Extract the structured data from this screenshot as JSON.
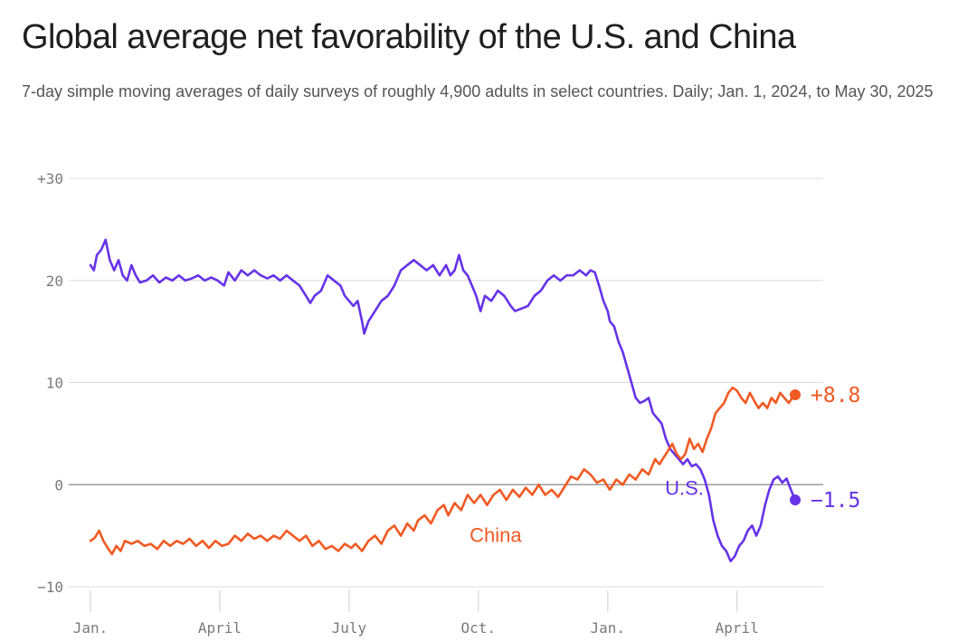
{
  "header": {
    "title": "Global average net favorability of the U.S. and China",
    "subtitle": "7-day simple moving averages of daily surveys of roughly 4,900 adults in select countries. Daily; Jan. 1, 2024, to May 30, 2025"
  },
  "colors": {
    "us": "#6733e8",
    "china": "#f05a23",
    "grid": "#dcdcdc",
    "zero": "#9a9a9a",
    "tick": "#7a7a7a"
  },
  "chart_data": {
    "type": "line",
    "title": "Global average net favorability of the U.S. and China",
    "xlabel": "",
    "ylabel": "",
    "ylim": [
      -10,
      30
    ],
    "grid": true,
    "x_unit": "months since Jan. 1, 2024",
    "xlim": [
      0,
      17
    ],
    "y_ticks": [
      {
        "value": 30,
        "label": "+30"
      },
      {
        "value": 20,
        "label": "20"
      },
      {
        "value": 10,
        "label": "10"
      },
      {
        "value": 0,
        "label": "0"
      },
      {
        "value": -10,
        "label": "−10"
      }
    ],
    "x_ticks": [
      {
        "value": 0,
        "label": "Jan."
      },
      {
        "value": 3,
        "label": "April"
      },
      {
        "value": 6,
        "label": "July"
      },
      {
        "value": 9,
        "label": "Oct."
      },
      {
        "value": 12,
        "label": "Jan."
      },
      {
        "value": 15,
        "label": "April"
      }
    ],
    "series": [
      {
        "name": "U.S.",
        "label": "U.S.",
        "end_label": "−1.5",
        "end_value": -1.5,
        "points": [
          [
            0.0,
            21.5
          ],
          [
            0.08,
            21.0
          ],
          [
            0.15,
            22.5
          ],
          [
            0.25,
            23.0
          ],
          [
            0.35,
            24.0
          ],
          [
            0.45,
            22.0
          ],
          [
            0.55,
            21.0
          ],
          [
            0.65,
            22.0
          ],
          [
            0.75,
            20.5
          ],
          [
            0.85,
            20.0
          ],
          [
            0.95,
            21.5
          ],
          [
            1.05,
            20.5
          ],
          [
            1.15,
            19.8
          ],
          [
            1.3,
            20.0
          ],
          [
            1.45,
            20.5
          ],
          [
            1.6,
            19.8
          ],
          [
            1.75,
            20.3
          ],
          [
            1.9,
            20.0
          ],
          [
            2.05,
            20.5
          ],
          [
            2.2,
            20.0
          ],
          [
            2.35,
            20.2
          ],
          [
            2.5,
            20.5
          ],
          [
            2.65,
            20.0
          ],
          [
            2.8,
            20.3
          ],
          [
            2.95,
            20.0
          ],
          [
            3.1,
            19.5
          ],
          [
            3.2,
            20.8
          ],
          [
            3.35,
            20.0
          ],
          [
            3.5,
            21.0
          ],
          [
            3.65,
            20.5
          ],
          [
            3.8,
            21.0
          ],
          [
            3.95,
            20.5
          ],
          [
            4.1,
            20.2
          ],
          [
            4.25,
            20.5
          ],
          [
            4.4,
            20.0
          ],
          [
            4.55,
            20.5
          ],
          [
            4.7,
            20.0
          ],
          [
            4.85,
            19.5
          ],
          [
            5.0,
            18.5
          ],
          [
            5.1,
            17.8
          ],
          [
            5.2,
            18.5
          ],
          [
            5.35,
            19.0
          ],
          [
            5.5,
            20.5
          ],
          [
            5.65,
            20.0
          ],
          [
            5.8,
            19.5
          ],
          [
            5.9,
            18.5
          ],
          [
            6.0,
            18.0
          ],
          [
            6.1,
            17.5
          ],
          [
            6.2,
            18.0
          ],
          [
            6.3,
            16.0
          ],
          [
            6.35,
            14.8
          ],
          [
            6.45,
            16.0
          ],
          [
            6.6,
            17.0
          ],
          [
            6.75,
            18.0
          ],
          [
            6.9,
            18.5
          ],
          [
            7.05,
            19.5
          ],
          [
            7.2,
            21.0
          ],
          [
            7.35,
            21.5
          ],
          [
            7.5,
            22.0
          ],
          [
            7.65,
            21.5
          ],
          [
            7.8,
            21.0
          ],
          [
            7.95,
            21.5
          ],
          [
            8.1,
            20.5
          ],
          [
            8.25,
            21.5
          ],
          [
            8.35,
            20.5
          ],
          [
            8.45,
            21.0
          ],
          [
            8.55,
            22.5
          ],
          [
            8.65,
            21.0
          ],
          [
            8.75,
            20.5
          ],
          [
            8.85,
            19.5
          ],
          [
            8.95,
            18.5
          ],
          [
            9.05,
            17.0
          ],
          [
            9.15,
            18.5
          ],
          [
            9.3,
            18.0
          ],
          [
            9.45,
            19.0
          ],
          [
            9.6,
            18.5
          ],
          [
            9.75,
            17.5
          ],
          [
            9.85,
            17.0
          ],
          [
            10.15,
            17.5
          ],
          [
            10.3,
            18.5
          ],
          [
            10.45,
            19.0
          ],
          [
            10.6,
            20.0
          ],
          [
            10.75,
            20.5
          ],
          [
            10.9,
            20.0
          ],
          [
            11.05,
            20.5
          ],
          [
            11.2,
            20.5
          ],
          [
            11.35,
            21.0
          ],
          [
            11.5,
            20.5
          ],
          [
            11.6,
            21.0
          ],
          [
            11.7,
            20.8
          ],
          [
            11.8,
            19.5
          ],
          [
            11.9,
            18.0
          ],
          [
            12.0,
            17.0
          ],
          [
            12.05,
            16.0
          ],
          [
            12.15,
            15.5
          ],
          [
            12.25,
            14.0
          ],
          [
            12.35,
            13.0
          ],
          [
            12.45,
            11.5
          ],
          [
            12.55,
            10.0
          ],
          [
            12.65,
            8.5
          ],
          [
            12.75,
            8.0
          ],
          [
            12.85,
            8.2
          ],
          [
            12.95,
            8.5
          ],
          [
            13.05,
            7.0
          ],
          [
            13.15,
            6.5
          ],
          [
            13.25,
            6.0
          ],
          [
            13.35,
            4.5
          ],
          [
            13.45,
            3.5
          ],
          [
            13.55,
            3.0
          ],
          [
            13.65,
            2.5
          ],
          [
            13.75,
            2.0
          ],
          [
            13.85,
            2.5
          ],
          [
            13.95,
            1.8
          ],
          [
            14.05,
            2.0
          ],
          [
            14.15,
            1.5
          ],
          [
            14.25,
            0.5
          ],
          [
            14.35,
            -1.0
          ],
          [
            14.45,
            -3.5
          ],
          [
            14.55,
            -5.0
          ],
          [
            14.65,
            -6.0
          ],
          [
            14.75,
            -6.5
          ],
          [
            14.85,
            -7.5
          ],
          [
            14.95,
            -7.0
          ],
          [
            15.05,
            -6.0
          ],
          [
            15.15,
            -5.5
          ],
          [
            15.25,
            -4.5
          ],
          [
            15.35,
            -4.0
          ],
          [
            15.45,
            -5.0
          ],
          [
            15.55,
            -4.0
          ],
          [
            15.65,
            -2.0
          ],
          [
            15.75,
            -0.5
          ],
          [
            15.85,
            0.5
          ],
          [
            15.95,
            0.8
          ],
          [
            16.05,
            0.2
          ],
          [
            16.15,
            0.6
          ],
          [
            16.25,
            -0.5
          ],
          [
            16.35,
            -1.5
          ]
        ]
      },
      {
        "name": "China",
        "label": "China",
        "end_label": "+8.8",
        "end_value": 8.8,
        "points": [
          [
            0.0,
            -5.5
          ],
          [
            0.1,
            -5.2
          ],
          [
            0.2,
            -4.5
          ],
          [
            0.3,
            -5.5
          ],
          [
            0.4,
            -6.2
          ],
          [
            0.5,
            -6.8
          ],
          [
            0.6,
            -6.0
          ],
          [
            0.7,
            -6.5
          ],
          [
            0.8,
            -5.5
          ],
          [
            0.95,
            -5.8
          ],
          [
            1.1,
            -5.5
          ],
          [
            1.25,
            -6.0
          ],
          [
            1.4,
            -5.8
          ],
          [
            1.55,
            -6.3
          ],
          [
            1.7,
            -5.5
          ],
          [
            1.85,
            -6.0
          ],
          [
            2.0,
            -5.5
          ],
          [
            2.15,
            -5.8
          ],
          [
            2.3,
            -5.3
          ],
          [
            2.45,
            -6.0
          ],
          [
            2.6,
            -5.5
          ],
          [
            2.75,
            -6.2
          ],
          [
            2.9,
            -5.5
          ],
          [
            3.05,
            -6.0
          ],
          [
            3.2,
            -5.8
          ],
          [
            3.35,
            -5.0
          ],
          [
            3.5,
            -5.5
          ],
          [
            3.65,
            -4.8
          ],
          [
            3.8,
            -5.3
          ],
          [
            3.95,
            -5.0
          ],
          [
            4.1,
            -5.5
          ],
          [
            4.25,
            -5.0
          ],
          [
            4.4,
            -5.3
          ],
          [
            4.55,
            -4.5
          ],
          [
            4.7,
            -5.0
          ],
          [
            4.85,
            -5.5
          ],
          [
            5.0,
            -5.0
          ],
          [
            5.15,
            -6.0
          ],
          [
            5.3,
            -5.5
          ],
          [
            5.45,
            -6.3
          ],
          [
            5.6,
            -6.0
          ],
          [
            5.75,
            -6.5
          ],
          [
            5.9,
            -5.8
          ],
          [
            6.05,
            -6.2
          ],
          [
            6.15,
            -5.8
          ],
          [
            6.3,
            -6.5
          ],
          [
            6.45,
            -5.5
          ],
          [
            6.6,
            -5.0
          ],
          [
            6.75,
            -5.8
          ],
          [
            6.9,
            -4.5
          ],
          [
            7.05,
            -4.0
          ],
          [
            7.2,
            -5.0
          ],
          [
            7.35,
            -3.8
          ],
          [
            7.5,
            -4.5
          ],
          [
            7.6,
            -3.5
          ],
          [
            7.75,
            -3.0
          ],
          [
            7.9,
            -3.8
          ],
          [
            8.05,
            -2.5
          ],
          [
            8.2,
            -2.0
          ],
          [
            8.3,
            -3.0
          ],
          [
            8.45,
            -1.8
          ],
          [
            8.6,
            -2.5
          ],
          [
            8.75,
            -1.0
          ],
          [
            8.9,
            -1.8
          ],
          [
            9.05,
            -1.0
          ],
          [
            9.2,
            -2.0
          ],
          [
            9.35,
            -1.0
          ],
          [
            9.5,
            -0.5
          ],
          [
            9.65,
            -1.5
          ],
          [
            9.8,
            -0.5
          ],
          [
            9.95,
            -1.2
          ],
          [
            10.1,
            -0.3
          ],
          [
            10.25,
            -1.0
          ],
          [
            10.4,
            0.0
          ],
          [
            10.55,
            -1.0
          ],
          [
            10.7,
            -0.5
          ],
          [
            10.85,
            -1.2
          ],
          [
            11.0,
            -0.2
          ],
          [
            11.15,
            0.8
          ],
          [
            11.3,
            0.5
          ],
          [
            11.45,
            1.5
          ],
          [
            11.6,
            1.0
          ],
          [
            11.75,
            0.2
          ],
          [
            11.9,
            0.5
          ],
          [
            12.05,
            -0.5
          ],
          [
            12.2,
            0.5
          ],
          [
            12.35,
            0.0
          ],
          [
            12.5,
            1.0
          ],
          [
            12.65,
            0.5
          ],
          [
            12.8,
            1.5
          ],
          [
            12.95,
            1.0
          ],
          [
            13.1,
            2.5
          ],
          [
            13.2,
            2.0
          ],
          [
            13.35,
            3.0
          ],
          [
            13.5,
            4.0
          ],
          [
            13.6,
            3.0
          ],
          [
            13.7,
            2.5
          ],
          [
            13.8,
            3.0
          ],
          [
            13.9,
            4.5
          ],
          [
            14.0,
            3.5
          ],
          [
            14.1,
            4.0
          ],
          [
            14.2,
            3.2
          ],
          [
            14.3,
            4.5
          ],
          [
            14.4,
            5.5
          ],
          [
            14.5,
            7.0
          ],
          [
            14.6,
            7.5
          ],
          [
            14.7,
            8.0
          ],
          [
            14.8,
            9.0
          ],
          [
            14.9,
            9.5
          ],
          [
            15.0,
            9.2
          ],
          [
            15.1,
            8.5
          ],
          [
            15.2,
            8.0
          ],
          [
            15.3,
            9.0
          ],
          [
            15.4,
            8.2
          ],
          [
            15.5,
            7.5
          ],
          [
            15.6,
            8.0
          ],
          [
            15.7,
            7.5
          ],
          [
            15.8,
            8.5
          ],
          [
            15.9,
            8.0
          ],
          [
            16.0,
            9.0
          ],
          [
            16.1,
            8.5
          ],
          [
            16.2,
            8.0
          ],
          [
            16.3,
            8.6
          ],
          [
            16.35,
            8.8
          ]
        ]
      }
    ]
  }
}
